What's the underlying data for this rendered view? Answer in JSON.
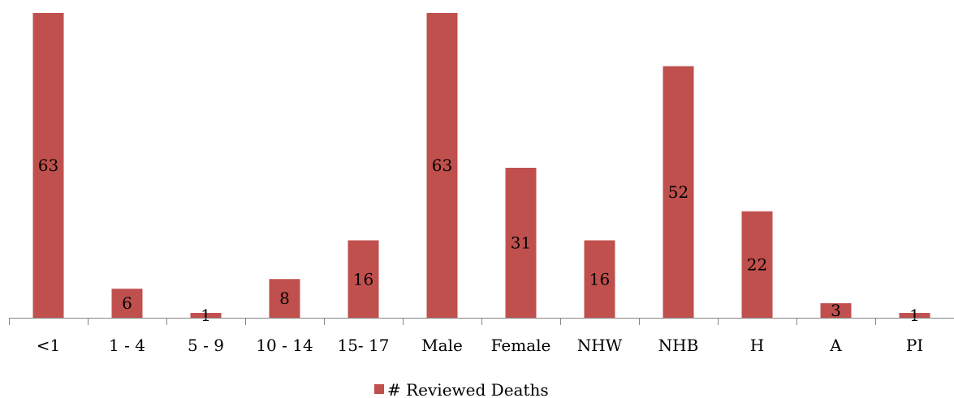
{
  "chart_data": {
    "type": "bar",
    "categories": [
      "<1",
      "1 - 4",
      "5 - 9",
      "10 - 14",
      "15- 17",
      "Male",
      "Female",
      "NHW",
      "NHB",
      "H",
      "A",
      "PI"
    ],
    "series": [
      {
        "name": "# Reviewed Deaths",
        "values": [
          63,
          6,
          1,
          8,
          16,
          63,
          31,
          16,
          52,
          22,
          3,
          1
        ],
        "color": "#c0504d"
      }
    ],
    "ylim": [
      0,
      63
    ],
    "grid": false,
    "legend": "bottom"
  }
}
